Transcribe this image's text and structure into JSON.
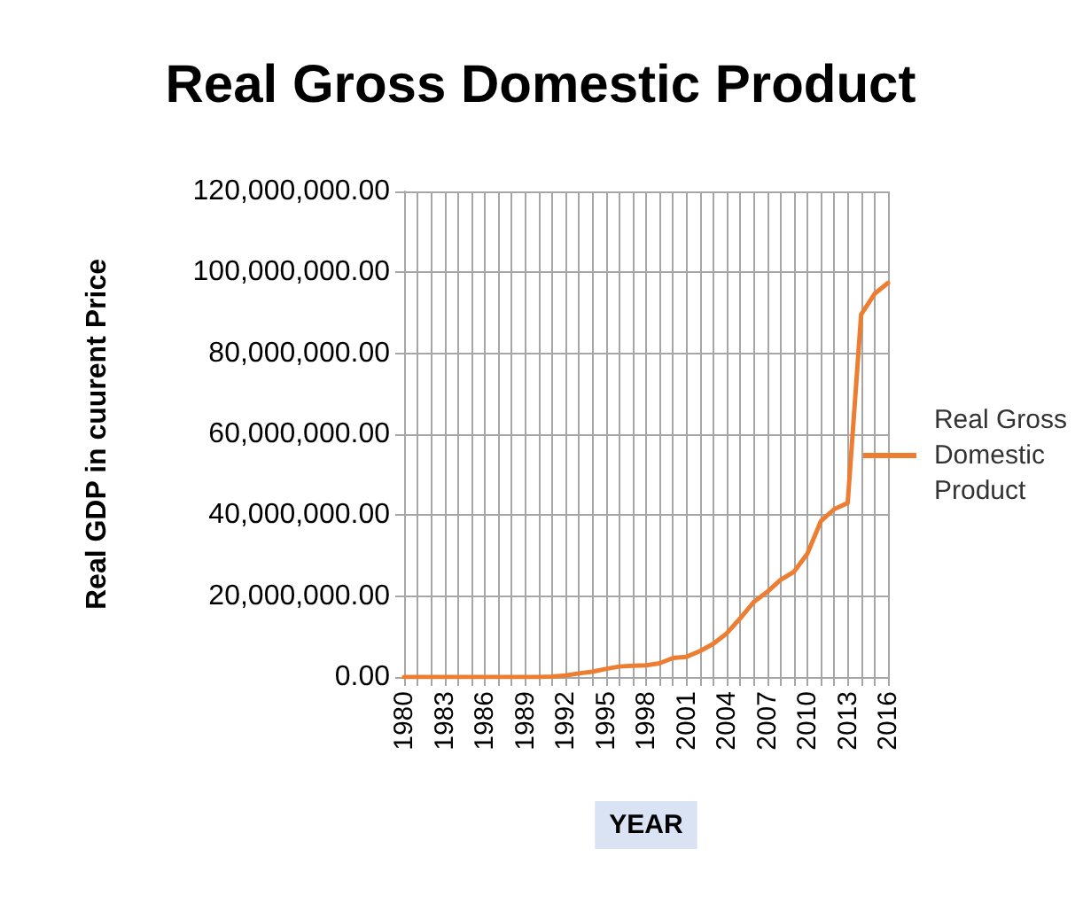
{
  "chart_data": {
    "type": "line",
    "title": "Real Gross Domestic Product",
    "xlabel": "YEAR",
    "ylabel": "Real GDP in cuurent Price",
    "x": [
      1980,
      1981,
      1982,
      1983,
      1984,
      1985,
      1986,
      1987,
      1988,
      1989,
      1990,
      1991,
      1992,
      1993,
      1994,
      1995,
      1996,
      1997,
      1998,
      1999,
      2000,
      2001,
      2002,
      2003,
      2004,
      2005,
      2006,
      2007,
      2008,
      2009,
      2010,
      2011,
      2012,
      2013,
      2014,
      2015,
      2016
    ],
    "series": [
      {
        "name": "Real Gross Domestic Product",
        "color": "#ed7d31",
        "values": [
          0,
          0,
          0,
          0,
          0,
          0,
          0,
          0,
          0,
          0,
          0,
          100000,
          400000,
          900000,
          1300000,
          2000000,
          2600000,
          2800000,
          2900000,
          3400000,
          4700000,
          5000000,
          6400000,
          8200000,
          10800000,
          14500000,
          18500000,
          21000000,
          24000000,
          26000000,
          30500000,
          38500000,
          41500000,
          43000000,
          89600000,
          94700000,
          97400000
        ]
      }
    ],
    "xlim": [
      1980,
      2016
    ],
    "xticks": [
      1980,
      {
        "value": 1981,
        "label": null
      },
      {
        "value": 1982,
        "label": null
      },
      1983,
      {
        "value": 1984,
        "label": null
      },
      {
        "value": 1985,
        "label": null
      },
      1986,
      {
        "value": 1987,
        "label": null
      },
      {
        "value": 1988,
        "label": null
      },
      1989,
      {
        "value": 1990,
        "label": null
      },
      {
        "value": 1991,
        "label": null
      },
      1992,
      {
        "value": 1993,
        "label": null
      },
      {
        "value": 1994,
        "label": null
      },
      1995,
      {
        "value": 1996,
        "label": null
      },
      {
        "value": 1997,
        "label": null
      },
      1998,
      {
        "value": 1999,
        "label": null
      },
      {
        "value": 2000,
        "label": null
      },
      2001,
      {
        "value": 2002,
        "label": null
      },
      {
        "value": 2003,
        "label": null
      },
      2004,
      {
        "value": 2005,
        "label": null
      },
      {
        "value": 2006,
        "label": null
      },
      2007,
      {
        "value": 2008,
        "label": null
      },
      {
        "value": 2009,
        "label": null
      },
      2010,
      {
        "value": 2011,
        "label": null
      },
      {
        "value": 2012,
        "label": null
      },
      2013,
      {
        "value": 2014,
        "label": null
      },
      {
        "value": 2015,
        "label": null
      },
      2016
    ],
    "ylim": [
      0,
      120000000
    ],
    "yticks": [
      {
        "value": 0,
        "label": "0.00"
      },
      {
        "value": 20000000,
        "label": "20,000,000.00"
      },
      {
        "value": 40000000,
        "label": "40,000,000.00"
      },
      {
        "value": 60000000,
        "label": "60,000,000.00"
      },
      {
        "value": 80000000,
        "label": "80,000,000.00"
      },
      {
        "value": 100000000,
        "label": "100,000,000.00"
      },
      {
        "value": 120000000,
        "label": "120,000,000.00"
      }
    ],
    "grid": true,
    "legend": "right",
    "marker": "none",
    "line_style": "solid"
  }
}
